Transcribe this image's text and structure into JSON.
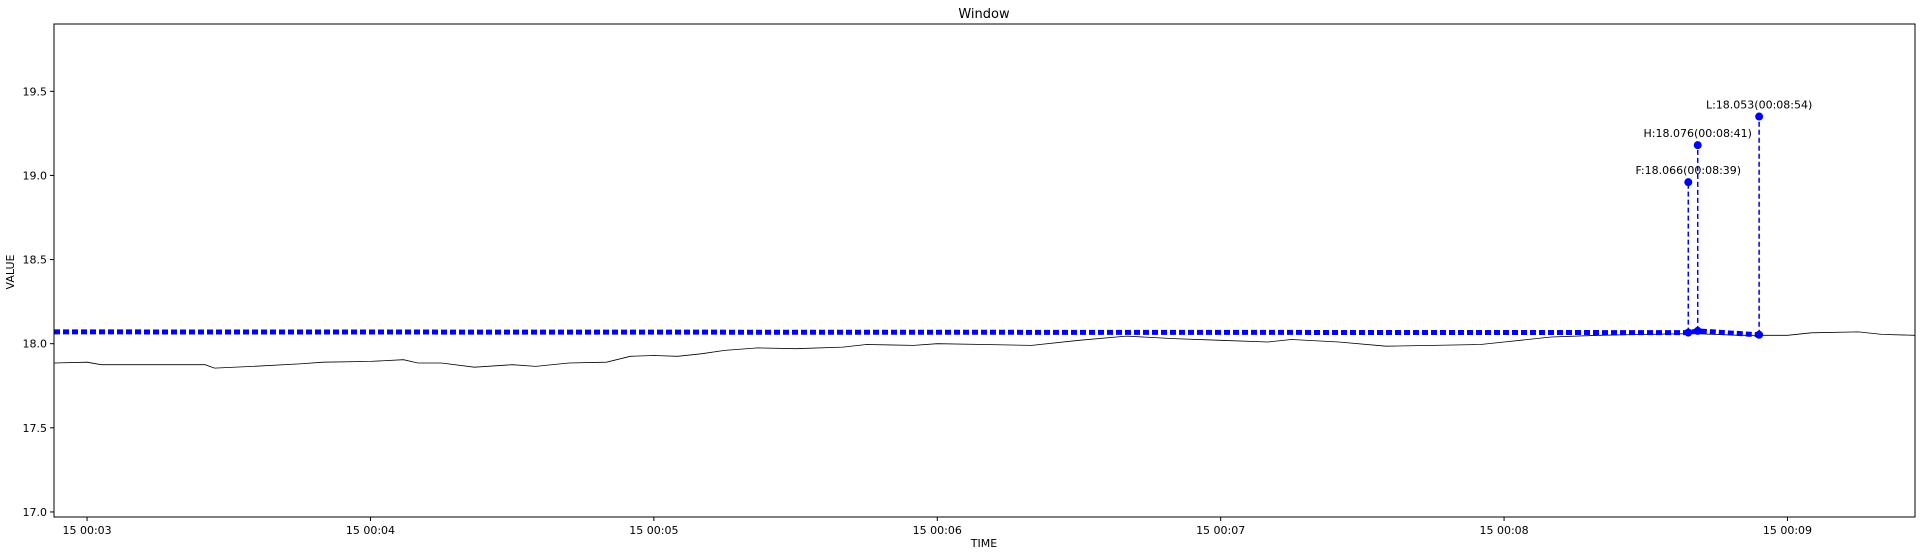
{
  "chart_data": {
    "type": "line",
    "title": "Window",
    "xlabel": "TIME",
    "ylabel": "VALUE",
    "xlim": [
      "00:02:53",
      "00:09:27"
    ],
    "ylim": [
      16.97,
      19.9
    ],
    "grid": false,
    "x_ticks": [
      {
        "label": "15 00:03",
        "time": "00:03:00"
      },
      {
        "label": "15 00:04",
        "time": "00:04:00"
      },
      {
        "label": "15 00:05",
        "time": "00:05:00"
      },
      {
        "label": "15 00:06",
        "time": "00:06:00"
      },
      {
        "label": "15 00:07",
        "time": "00:07:00"
      },
      {
        "label": "15 00:08",
        "time": "00:08:00"
      },
      {
        "label": "15 00:09",
        "time": "00:09:00"
      }
    ],
    "y_ticks": [
      {
        "label": "17.0",
        "value": 17.0
      },
      {
        "label": "17.5",
        "value": 17.5
      },
      {
        "label": "18.0",
        "value": 18.0
      },
      {
        "label": "18.5",
        "value": 18.5
      },
      {
        "label": "19.0",
        "value": 19.0
      },
      {
        "label": "19.5",
        "value": 19.5
      }
    ],
    "series": [
      {
        "color": "#000000",
        "style": "solid",
        "points": [
          [
            "00:02:53",
            17.885
          ],
          [
            "00:03:00",
            17.89
          ],
          [
            "00:03:03",
            17.875
          ],
          [
            "00:03:15",
            17.875
          ],
          [
            "00:03:25",
            17.875
          ],
          [
            "00:03:27",
            17.855
          ],
          [
            "00:03:35",
            17.865
          ],
          [
            "00:03:45",
            17.88
          ],
          [
            "00:03:50",
            17.89
          ],
          [
            "00:04:00",
            17.895
          ],
          [
            "00:04:07",
            17.905
          ],
          [
            "00:04:10",
            17.885
          ],
          [
            "00:04:15",
            17.885
          ],
          [
            "00:04:22",
            17.86
          ],
          [
            "00:04:30",
            17.875
          ],
          [
            "00:04:35",
            17.865
          ],
          [
            "00:04:42",
            17.885
          ],
          [
            "00:04:50",
            17.89
          ],
          [
            "00:04:55",
            17.925
          ],
          [
            "00:05:00",
            17.93
          ],
          [
            "00:05:05",
            17.925
          ],
          [
            "00:05:10",
            17.94
          ],
          [
            "00:05:15",
            17.96
          ],
          [
            "00:05:22",
            17.975
          ],
          [
            "00:05:30",
            17.97
          ],
          [
            "00:05:40",
            17.98
          ],
          [
            "00:05:45",
            17.995
          ],
          [
            "00:05:55",
            17.99
          ],
          [
            "00:06:00",
            18.0
          ],
          [
            "00:06:10",
            17.995
          ],
          [
            "00:06:20",
            17.99
          ],
          [
            "00:06:30",
            18.02
          ],
          [
            "00:06:40",
            18.045
          ],
          [
            "00:06:50",
            18.03
          ],
          [
            "00:07:00",
            18.02
          ],
          [
            "00:07:10",
            18.01
          ],
          [
            "00:07:15",
            18.025
          ],
          [
            "00:07:25",
            18.01
          ],
          [
            "00:07:35",
            17.985
          ],
          [
            "00:07:45",
            17.99
          ],
          [
            "00:07:55",
            17.995
          ],
          [
            "00:08:00",
            18.01
          ],
          [
            "00:08:10",
            18.04
          ],
          [
            "00:08:20",
            18.05
          ],
          [
            "00:08:30",
            18.055
          ],
          [
            "00:08:40",
            18.06
          ],
          [
            "00:08:50",
            18.05
          ],
          [
            "00:09:00",
            18.05
          ],
          [
            "00:09:05",
            18.065
          ],
          [
            "00:09:15",
            18.07
          ],
          [
            "00:09:20",
            18.055
          ],
          [
            "00:09:27",
            18.05
          ]
        ]
      },
      {
        "color": "#0000ff",
        "style": "dashed",
        "points": [
          [
            "00:02:53",
            18.07
          ],
          [
            "00:08:39",
            18.066
          ],
          [
            "00:08:41",
            18.076
          ],
          [
            "00:08:54",
            18.053
          ]
        ]
      }
    ],
    "markers": [
      {
        "label": "F:18.066(00:08:39)",
        "time": "00:08:39",
        "value": 18.066,
        "label_y": 18.96
      },
      {
        "label": "H:18.076(00:08:41)",
        "time": "00:08:41",
        "value": 18.076,
        "label_y": 19.18
      },
      {
        "label": "L:18.053(00:08:54)",
        "time": "00:08:54",
        "value": 18.053,
        "label_y": 19.35
      }
    ],
    "marker_color": "#0000ff"
  }
}
